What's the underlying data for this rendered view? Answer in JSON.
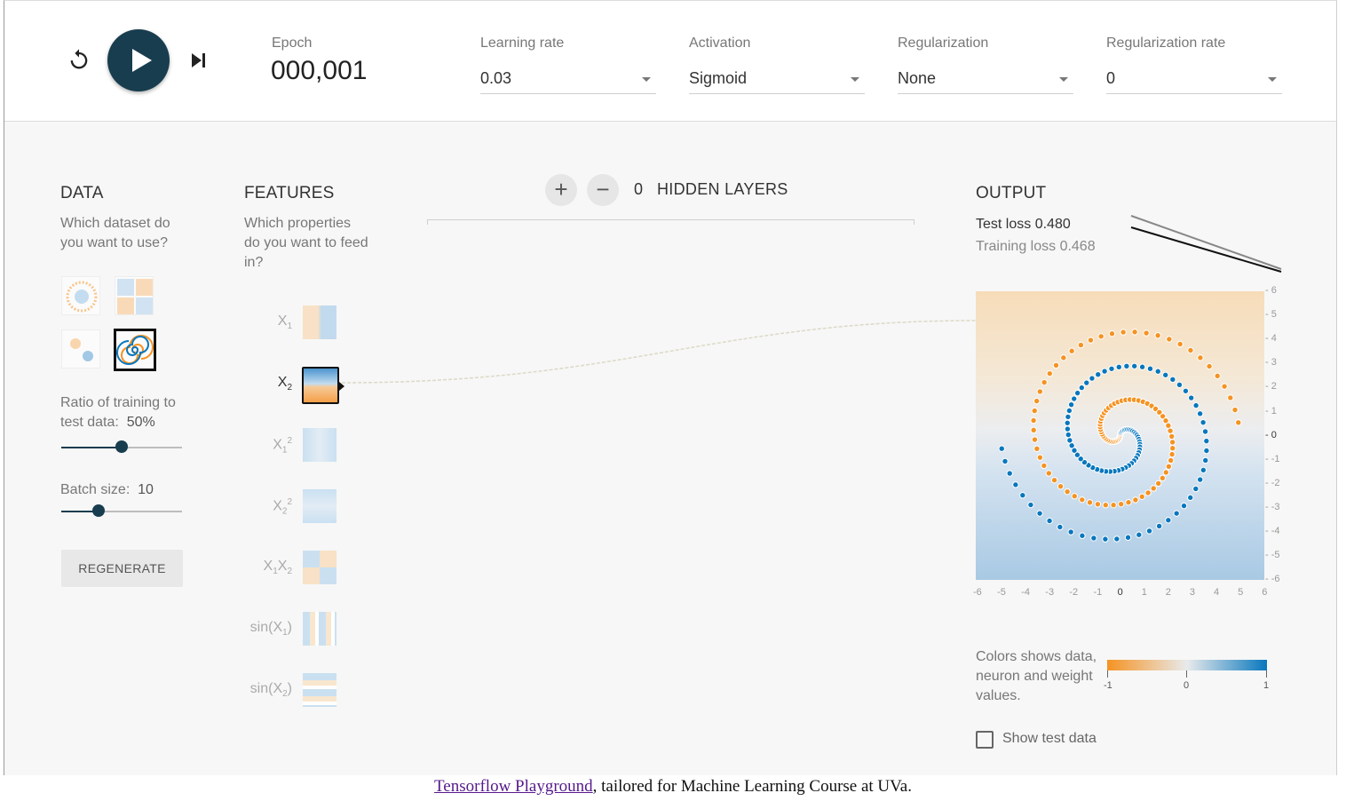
{
  "controls": {
    "epoch_label": "Epoch",
    "epoch_value": "000,001",
    "learning_rate": {
      "label": "Learning rate",
      "value": "0.03"
    },
    "activation": {
      "label": "Activation",
      "value": "Sigmoid"
    },
    "regularization": {
      "label": "Regularization",
      "value": "None"
    },
    "regularization_rate": {
      "label": "Regularization rate",
      "value": "0"
    }
  },
  "data_section": {
    "title": "DATA",
    "subtitle": "Which dataset do you want to use?",
    "datasets": [
      "circle-dataset-icon",
      "xor-dataset-icon",
      "gaussian-dataset-icon",
      "spiral-dataset-icon"
    ],
    "selected_dataset": "spiral-dataset-icon",
    "ratio_label": "Ratio of training to test data:",
    "ratio_value": "50%",
    "ratio_fraction": 0.5,
    "batch_label": "Batch size:",
    "batch_value": "10",
    "batch_fraction": 0.31,
    "regenerate_label": "REGENERATE"
  },
  "features_section": {
    "title": "FEATURES",
    "subtitle": "Which properties do you want to feed in?",
    "features": [
      {
        "label": "X1",
        "active": false
      },
      {
        "label": "X2",
        "active": true
      },
      {
        "label": "X1²",
        "active": false
      },
      {
        "label": "X2²",
        "active": false
      },
      {
        "label": "X1X2",
        "active": false
      },
      {
        "label": "sin(X1)",
        "active": false
      },
      {
        "label": "sin(X2)",
        "active": false
      }
    ]
  },
  "network": {
    "hidden_layers_count": "0",
    "hidden_layers_label": "HIDDEN LAYERS",
    "add_symbol": "+",
    "remove_symbol": "−"
  },
  "output_section": {
    "title": "OUTPUT",
    "test_loss_label": "Test loss",
    "test_loss_value": "0.480",
    "training_loss_label": "Training loss",
    "training_loss_value": "0.468",
    "y_ticks": [
      "6",
      "5",
      "4",
      "3",
      "2",
      "1",
      "0",
      "-1",
      "-2",
      "-3",
      "-4",
      "-5",
      "-6"
    ],
    "x_ticks": [
      "-6",
      "-5",
      "-4",
      "-3",
      "-2",
      "-1",
      "0",
      "1",
      "2",
      "3",
      "4",
      "5",
      "6"
    ],
    "legend_text": "Colors shows data, neuron and weight values.",
    "legend_ticks": [
      "-1",
      "0",
      "1"
    ],
    "show_test_label": "Show test data",
    "show_test_checked": false
  },
  "colors": {
    "class_orange": "#f59322",
    "class_blue": "#0877bd",
    "play_button": "#183d4e"
  },
  "footer": {
    "link_text": "Tensorflow Playground",
    "rest_text": ", tailored for Machine Learning Course at UVa."
  }
}
